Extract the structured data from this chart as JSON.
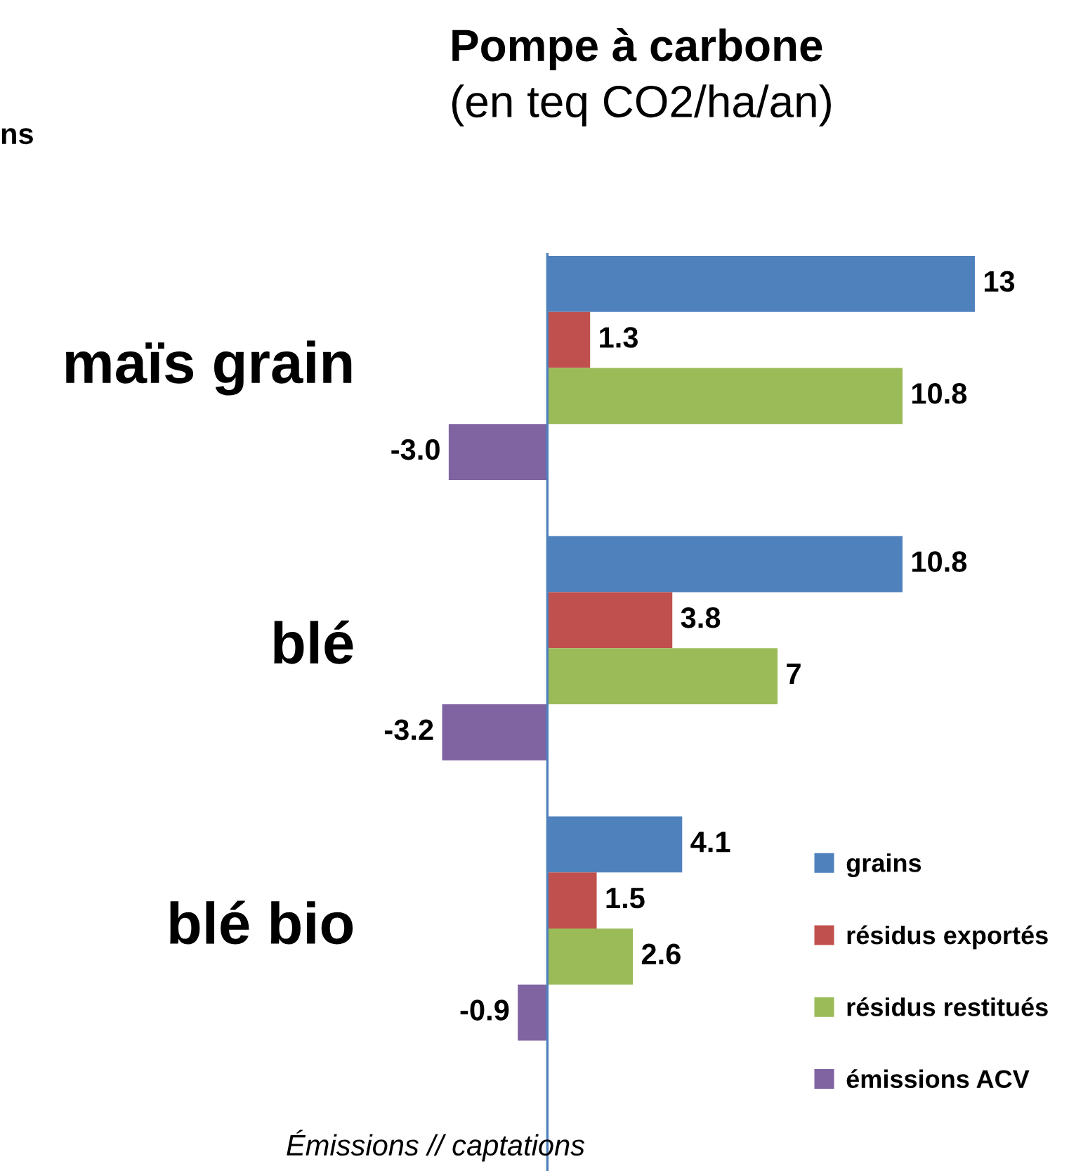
{
  "chart_data": {
    "type": "bar",
    "orientation": "horizontal",
    "title": "Pompe à carbone",
    "subtitle": "(en teq CO2/ha/an)",
    "categories": [
      "maïs grain",
      "blé",
      "blé bio"
    ],
    "series": [
      {
        "name": "grains",
        "color": "#4f81bd",
        "values": [
          13,
          10.8,
          4.1
        ],
        "value_labels": [
          "13",
          "10.8",
          "4.1"
        ]
      },
      {
        "name": "résidus exportés",
        "color": "#c0504d",
        "values": [
          1.3,
          3.8,
          1.5
        ],
        "value_labels": [
          "1.3",
          "3.8",
          "1.5"
        ]
      },
      {
        "name": "résidus restitués",
        "color": "#9bbb59",
        "values": [
          10.8,
          7,
          2.6
        ],
        "value_labels": [
          "10.8",
          "7",
          "2.6"
        ]
      },
      {
        "name": "émissions ACV",
        "color": "#8064a2",
        "values": [
          -3.0,
          -3.2,
          -0.9
        ],
        "value_labels": [
          "-3.0",
          "-3.2",
          "-0.9"
        ]
      }
    ],
    "legend": "bottom right",
    "ref_lines": [
      {
        "axis": "x",
        "value": 0,
        "color": "#4f81bd"
      }
    ],
    "annotations": [
      "ns",
      "Émissions // captations"
    ]
  }
}
